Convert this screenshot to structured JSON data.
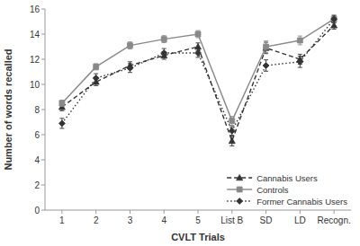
{
  "chart_data": {
    "type": "line",
    "xlabel": "CVLT Trials",
    "ylabel": "Number of words recalled",
    "categories": [
      "1",
      "2",
      "3",
      "4",
      "5",
      "List B",
      "SD",
      "LD",
      "Recogn."
    ],
    "series": [
      {
        "name": "Cannabis Users",
        "color": "#333333",
        "marker": "triangle",
        "line_style": "dashed",
        "values": [
          8.2,
          10.2,
          11.5,
          12.3,
          13.0,
          5.5,
          12.9,
          12.0,
          14.7
        ],
        "errors": [
          0.3,
          0.3,
          0.3,
          0.3,
          0.3,
          0.4,
          0.45,
          0.4,
          0.3
        ]
      },
      {
        "name": "Controls",
        "color": "#888888",
        "marker": "square",
        "line_style": "solid",
        "values": [
          8.5,
          11.4,
          13.1,
          13.6,
          14.0,
          7.1,
          13.0,
          13.5,
          15.2
        ],
        "errors": [
          0.25,
          0.25,
          0.28,
          0.28,
          0.28,
          0.35,
          0.45,
          0.35,
          0.28
        ]
      },
      {
        "name": "Former Cannabis Users",
        "color": "#333333",
        "marker": "diamond",
        "line_style": "dotted",
        "values": [
          6.9,
          10.5,
          11.3,
          12.5,
          12.5,
          6.3,
          11.5,
          11.8,
          15.2
        ],
        "errors": [
          0.4,
          0.35,
          0.35,
          0.35,
          0.35,
          0.35,
          0.45,
          0.45,
          0.3
        ]
      }
    ],
    "ylim": [
      0,
      16
    ],
    "yticks": [
      0,
      2,
      4,
      6,
      8,
      10,
      12,
      14,
      16
    ],
    "grid": false,
    "legend": "lower right"
  }
}
